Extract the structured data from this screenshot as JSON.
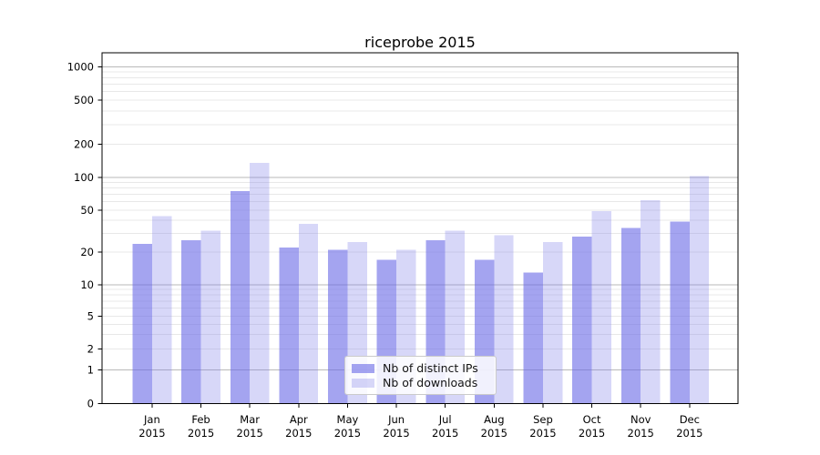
{
  "chart_data": {
    "type": "bar",
    "title": "riceprobe 2015",
    "categories": [
      "Jan",
      "Feb",
      "Mar",
      "Apr",
      "May",
      "Jun",
      "Jul",
      "Aug",
      "Sep",
      "Oct",
      "Nov",
      "Dec"
    ],
    "year_label": "2015",
    "series": [
      {
        "name": "Nb of distinct IPs",
        "color": "#6c6ce7",
        "opacity": 0.62,
        "values": [
          24,
          26,
          75,
          22,
          21,
          17,
          26,
          17,
          13,
          28,
          34,
          39
        ]
      },
      {
        "name": "Nb of downloads",
        "color": "#7a7ae8",
        "opacity": 0.3,
        "values": [
          44,
          32,
          135,
          37,
          25,
          21,
          32,
          29,
          25,
          49,
          62,
          103
        ]
      }
    ],
    "y_axis": {
      "scale": "symlog (log above 1, linear 0-1)",
      "tick_labels": [
        "1000",
        "500",
        "200",
        "100",
        "50",
        "20",
        "10",
        "5",
        "2",
        "1",
        "0"
      ],
      "tick_values": [
        1000,
        500,
        200,
        100,
        50,
        20,
        10,
        5,
        2,
        1,
        0
      ],
      "major_tick_values": [
        1000,
        100,
        10,
        1
      ],
      "range": [
        0,
        1400
      ]
    },
    "x_axis": {
      "label_lines": 2
    },
    "legend": {
      "position": "lower center",
      "entries": [
        "Nb of distinct IPs",
        "Nb of downloads"
      ]
    },
    "grid": true,
    "grid_minor_values": [
      2,
      3,
      4,
      5,
      6,
      7,
      8,
      9,
      20,
      30,
      40,
      50,
      60,
      70,
      80,
      90,
      200,
      300,
      400,
      500,
      600,
      700,
      800,
      900
    ]
  }
}
